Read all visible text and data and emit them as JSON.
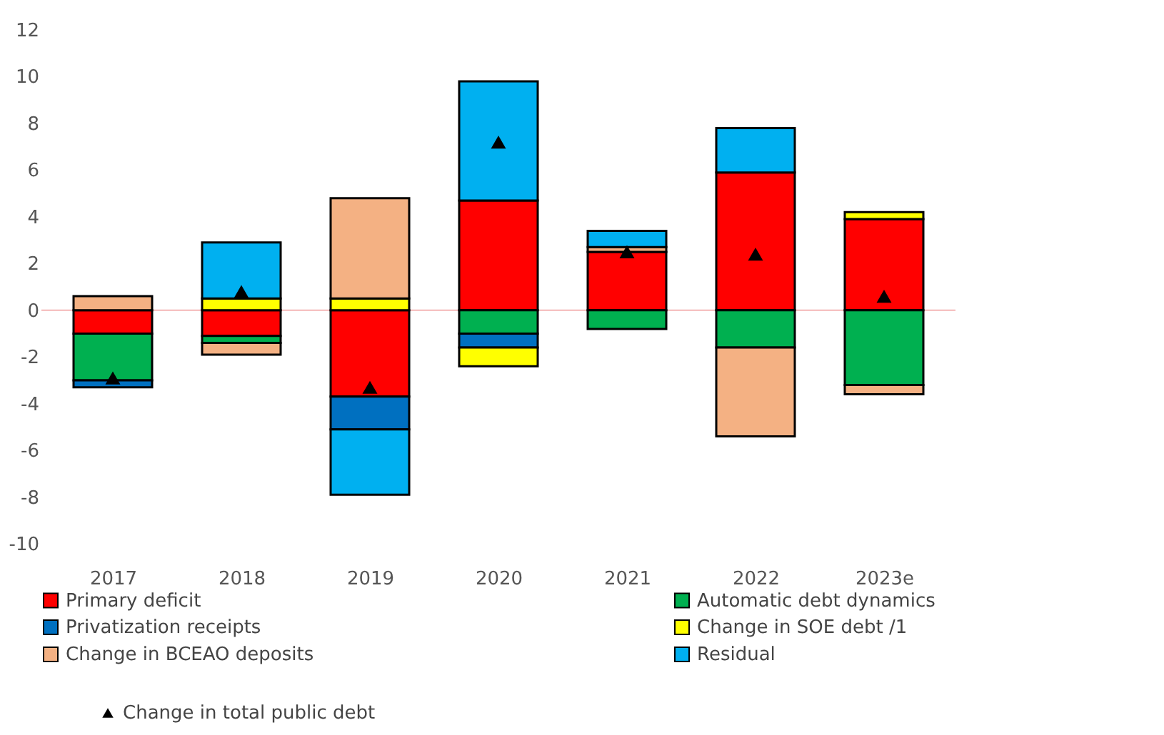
{
  "chart_data": {
    "type": "bar",
    "stacked": true,
    "categories": [
      "2017",
      "2018",
      "2019",
      "2020",
      "2021",
      "2022",
      "2023e"
    ],
    "series": [
      {
        "name": "Primary deficit",
        "color": "#ff0000",
        "values": [
          -1.0,
          -1.1,
          -3.7,
          4.7,
          2.5,
          5.9,
          3.9
        ]
      },
      {
        "name": "Automatic debt dynamics",
        "color": "#00b050",
        "values": [
          -2.0,
          -0.3,
          null,
          -1.0,
          -0.8,
          -1.6,
          -3.2
        ]
      },
      {
        "name": "Privatization receipts",
        "color": "#0070c0",
        "values": [
          -0.3,
          null,
          -1.4,
          -0.6,
          null,
          null,
          null
        ]
      },
      {
        "name": "Change in SOE debt /1",
        "color": "#ffff00",
        "values": [
          null,
          0.5,
          0.5,
          -0.8,
          null,
          null,
          0.3
        ]
      },
      {
        "name": "Change in BCEAO deposits",
        "color": "#f4b183",
        "values": [
          0.6,
          -0.5,
          4.3,
          null,
          0.2,
          -3.8,
          -0.4
        ]
      },
      {
        "name": "Residual",
        "color": "#00b0f0",
        "values": [
          null,
          2.4,
          -2.8,
          5.1,
          0.7,
          1.9,
          null
        ]
      },
      {
        "name": "Change in total public debt",
        "type": "scatter",
        "marker": "triangle",
        "color": "#000000",
        "values": [
          -2.9,
          0.8,
          -3.3,
          7.2,
          2.5,
          2.4,
          0.6
        ]
      }
    ],
    "ylim": [
      -10,
      12
    ],
    "yticks": [
      -10,
      -8,
      -6,
      -4,
      -2,
      0,
      2,
      4,
      6,
      8,
      10,
      12
    ],
    "ref_lines": [
      {
        "axis": "y",
        "value": 0,
        "color": "#f4b6b6"
      }
    ],
    "grid": false,
    "legend": "bottom"
  }
}
